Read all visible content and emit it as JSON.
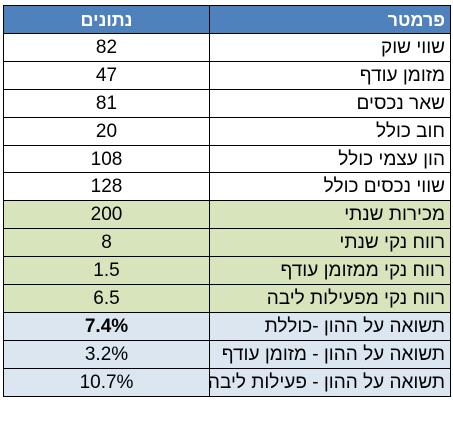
{
  "headers": {
    "param": "פרמטר",
    "data": "נתונים"
  },
  "colors": {
    "header": "#4f81bd",
    "white": "#ffffff",
    "green": "#d8e4bc",
    "blue": "#dce6f1"
  },
  "rows": [
    {
      "label": "שווי שוק",
      "value": "82",
      "group": "white"
    },
    {
      "label": "מזומן עודף",
      "value": "47",
      "group": "white"
    },
    {
      "label": "שאר נכסים",
      "value": "81",
      "group": "white"
    },
    {
      "label": "חוב כולל",
      "value": "20",
      "group": "white"
    },
    {
      "label": "הון עצמי כולל",
      "value": "108",
      "group": "white"
    },
    {
      "label": "שווי נכסים כולל",
      "value": "128",
      "group": "white"
    },
    {
      "label": "מכירות שנתי",
      "value": "200",
      "group": "green"
    },
    {
      "label": "רווח נקי שנתי",
      "value": "8",
      "group": "green"
    },
    {
      "label": "רווח נקי ממזומן עודף",
      "value": "1.5",
      "group": "green"
    },
    {
      "label": "רווח נקי מפעילות ליבה",
      "value": "6.5",
      "group": "green"
    },
    {
      "label": "תשואה על ההון -כוללת",
      "value": "7.4%",
      "group": "blue",
      "bold": true
    },
    {
      "label": "תשואה על ההון - מזומן עודף",
      "value": "3.2%",
      "group": "blue"
    },
    {
      "label": "תשואה על ההון - פעילות ליבה",
      "value": "10.7%",
      "group": "blue"
    }
  ]
}
